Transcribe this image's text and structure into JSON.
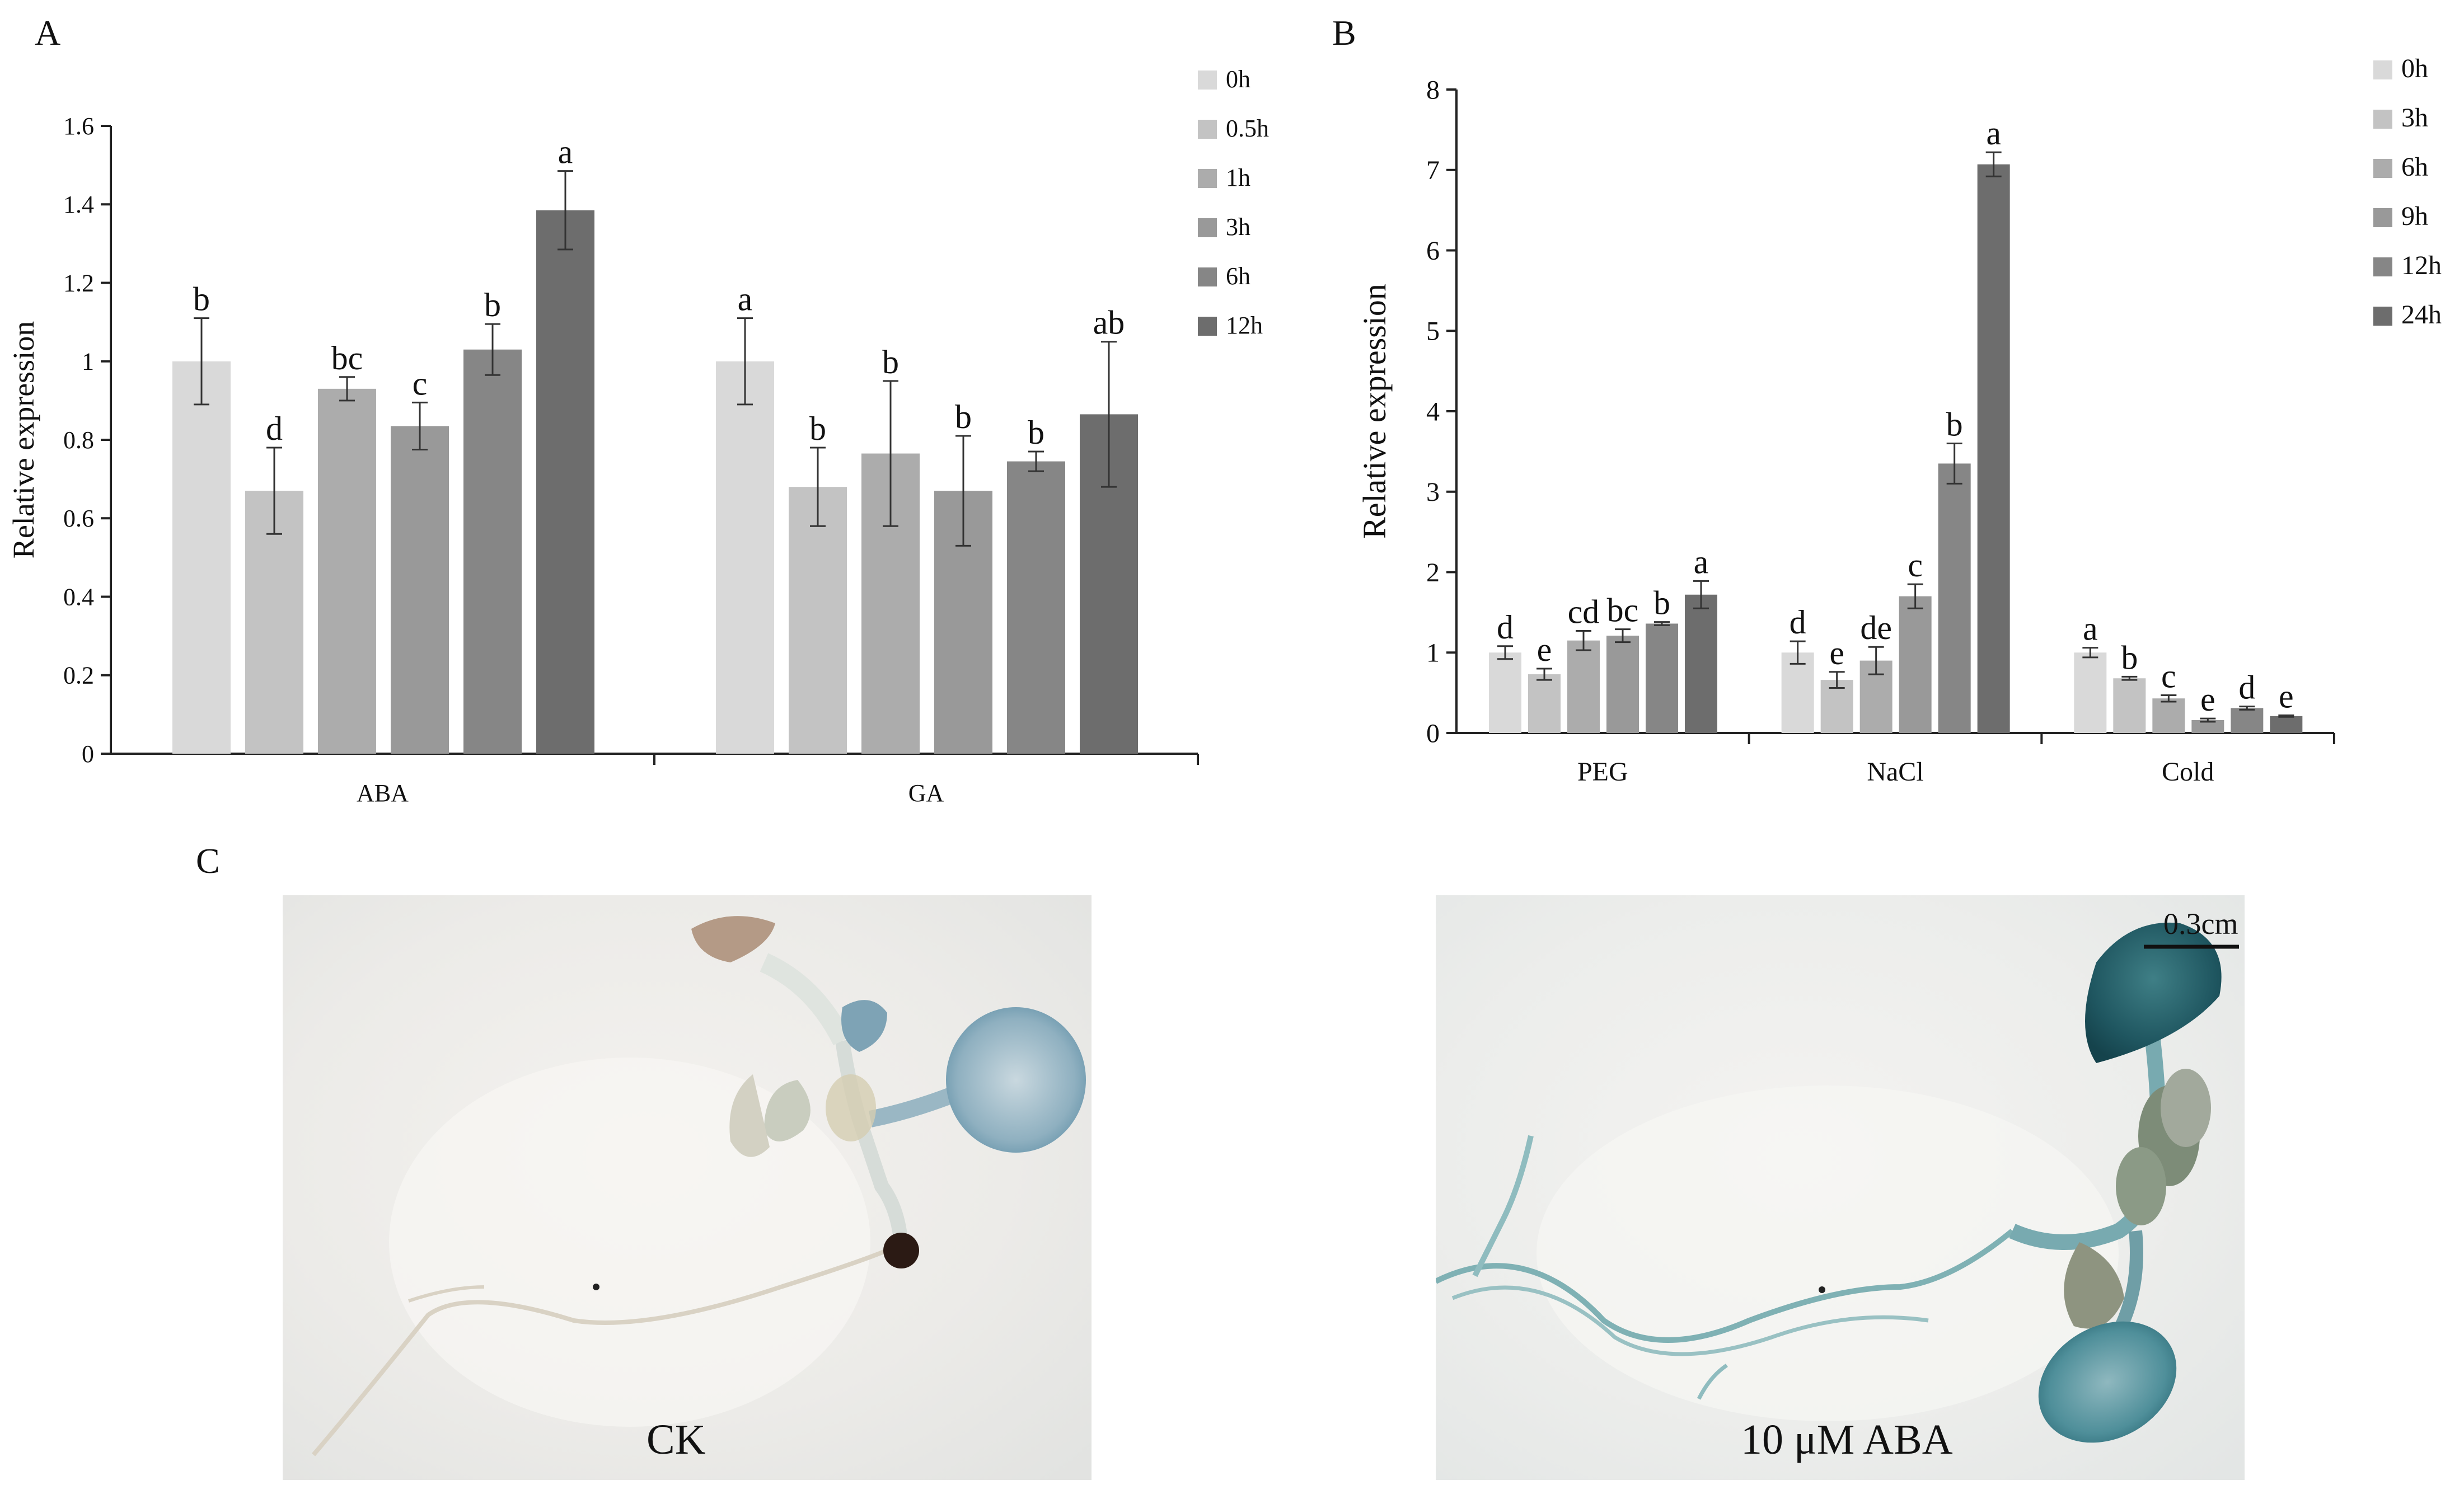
{
  "panels": {
    "a": "A",
    "b": "B",
    "c": "C"
  },
  "chart_data": [
    {
      "type": "bar",
      "panel": "A",
      "ylabel": "Relative expression",
      "ylim": [
        0,
        1.6
      ],
      "yticks": [
        "0",
        "0.2",
        "0.4",
        "0.6",
        "0.8",
        "1",
        "1.2",
        "1.4",
        "1.6"
      ],
      "yticks_values": [
        0,
        0.2,
        0.4,
        0.6,
        0.8,
        1.0,
        1.2,
        1.4,
        1.6
      ],
      "categories": [
        "ABA",
        "GA"
      ],
      "legend_position": "top-right",
      "series": [
        {
          "name": "0h",
          "color": "#d9d9d9",
          "values": [
            1.0,
            1.0
          ],
          "errors": [
            0.11,
            0.11
          ],
          "letters": [
            "b",
            "a"
          ]
        },
        {
          "name": "0.5h",
          "color": "#c3c3c3",
          "values": [
            0.67,
            0.68
          ],
          "errors": [
            0.11,
            0.1
          ],
          "letters": [
            "d",
            "b"
          ]
        },
        {
          "name": "1h",
          "color": "#acacac",
          "values": [
            0.93,
            0.765
          ],
          "errors": [
            0.03,
            0.185
          ],
          "letters": [
            "bc",
            "b"
          ]
        },
        {
          "name": "3h",
          "color": "#999999",
          "values": [
            0.835,
            0.67
          ],
          "errors": [
            0.06,
            0.14
          ],
          "letters": [
            "c",
            "b"
          ]
        },
        {
          "name": "6h",
          "color": "#868686",
          "values": [
            1.03,
            0.745
          ],
          "errors": [
            0.065,
            0.025
          ],
          "letters": [
            "b",
            "b"
          ]
        },
        {
          "name": "12h",
          "color": "#6d6d6d",
          "values": [
            1.385,
            0.865
          ],
          "errors": [
            0.1,
            0.185
          ],
          "letters": [
            "a",
            "ab"
          ]
        }
      ]
    },
    {
      "type": "bar",
      "panel": "B",
      "ylabel": "Relative expression",
      "ylim": [
        0,
        8
      ],
      "yticks": [
        "0",
        "1",
        "2",
        "3",
        "4",
        "5",
        "6",
        "7",
        "8"
      ],
      "yticks_values": [
        0,
        1,
        2,
        3,
        4,
        5,
        6,
        7,
        8
      ],
      "categories": [
        "PEG",
        "NaCl",
        "Cold"
      ],
      "legend_position": "top-right",
      "series": [
        {
          "name": "0h",
          "color": "#d9d9d9",
          "values": [
            1.0,
            1.0,
            1.0
          ],
          "errors": [
            0.08,
            0.14,
            0.06
          ],
          "letters": [
            "d",
            "d",
            "a"
          ]
        },
        {
          "name": "3h",
          "color": "#c3c3c3",
          "values": [
            0.73,
            0.66,
            0.68
          ],
          "errors": [
            0.07,
            0.1,
            0.02
          ],
          "letters": [
            "e",
            "e",
            "b"
          ]
        },
        {
          "name": "6h",
          "color": "#acacac",
          "values": [
            1.15,
            0.9,
            0.43
          ],
          "errors": [
            0.12,
            0.17,
            0.04
          ],
          "letters": [
            "cd",
            "de",
            "c"
          ]
        },
        {
          "name": "9h",
          "color": "#999999",
          "values": [
            1.21,
            1.7,
            0.16
          ],
          "errors": [
            0.08,
            0.15,
            0.02
          ],
          "letters": [
            "bc",
            "c",
            "e"
          ]
        },
        {
          "name": "12h",
          "color": "#868686",
          "values": [
            1.36,
            3.35,
            0.31
          ],
          "errors": [
            0.02,
            0.25,
            0.02
          ],
          "letters": [
            "b",
            "b",
            "d"
          ]
        },
        {
          "name": "24h",
          "color": "#6d6d6d",
          "values": [
            1.72,
            7.07,
            0.21
          ],
          "errors": [
            0.17,
            0.15,
            0.01
          ],
          "letters": [
            "a",
            "a",
            "e"
          ]
        }
      ]
    }
  ],
  "photos": {
    "left_label": "CK",
    "right_label": "10 μM ABA",
    "scale_bar_label": "0.3cm"
  }
}
